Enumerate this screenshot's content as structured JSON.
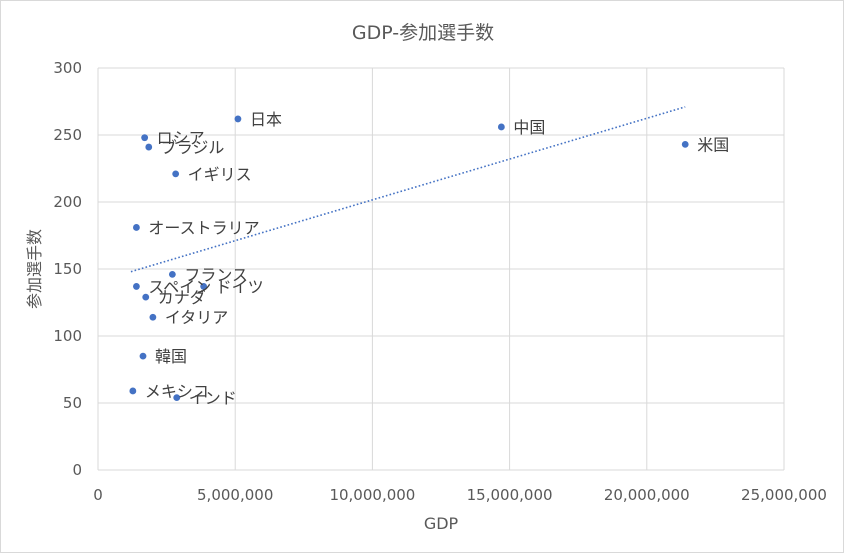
{
  "chart_data": {
    "type": "scatter",
    "title": "GDP-参加選手数",
    "xlabel": "GDP",
    "ylabel": "参加選手数",
    "xlim": [
      0,
      25000000
    ],
    "ylim": [
      0,
      300
    ],
    "x_ticks": [
      0,
      5000000,
      10000000,
      15000000,
      20000000,
      25000000
    ],
    "x_tick_labels": [
      "0",
      "5,000,000",
      "10,000,000",
      "15,000,000",
      "20,000,000",
      "25,000,000"
    ],
    "y_ticks": [
      0,
      50,
      100,
      150,
      200,
      250,
      300
    ],
    "y_tick_labels": [
      "0",
      "50",
      "100",
      "150",
      "200",
      "250",
      "300"
    ],
    "grid": true,
    "marker_color": "#4472c4",
    "trendline": {
      "type": "linear",
      "style": "dotted",
      "color": "#4472c4",
      "x_range": [
        1200000,
        21400000
      ],
      "y_range": [
        148,
        271
      ]
    },
    "points": [
      {
        "label": "日本",
        "x": 5100000,
        "y": 262
      },
      {
        "label": "中国",
        "x": 14700000,
        "y": 256
      },
      {
        "label": "米国",
        "x": 21400000,
        "y": 243
      },
      {
        "label": "ロシア",
        "x": 1700000,
        "y": 248
      },
      {
        "label": "ブラジル",
        "x": 1850000,
        "y": 241
      },
      {
        "label": "イギリス",
        "x": 2830000,
        "y": 221
      },
      {
        "label": "オーストラリア",
        "x": 1400000,
        "y": 181
      },
      {
        "label": "フランス",
        "x": 2710000,
        "y": 146
      },
      {
        "label": "ドイツ",
        "x": 3850000,
        "y": 137
      },
      {
        "label": "スペイン",
        "x": 1400000,
        "y": 137
      },
      {
        "label": "カナダ",
        "x": 1740000,
        "y": 129
      },
      {
        "label": "イタリア",
        "x": 2000000,
        "y": 114
      },
      {
        "label": "韓国",
        "x": 1640000,
        "y": 85
      },
      {
        "label": "メキシコ",
        "x": 1270000,
        "y": 59
      },
      {
        "label": "インド",
        "x": 2870000,
        "y": 54
      }
    ]
  }
}
